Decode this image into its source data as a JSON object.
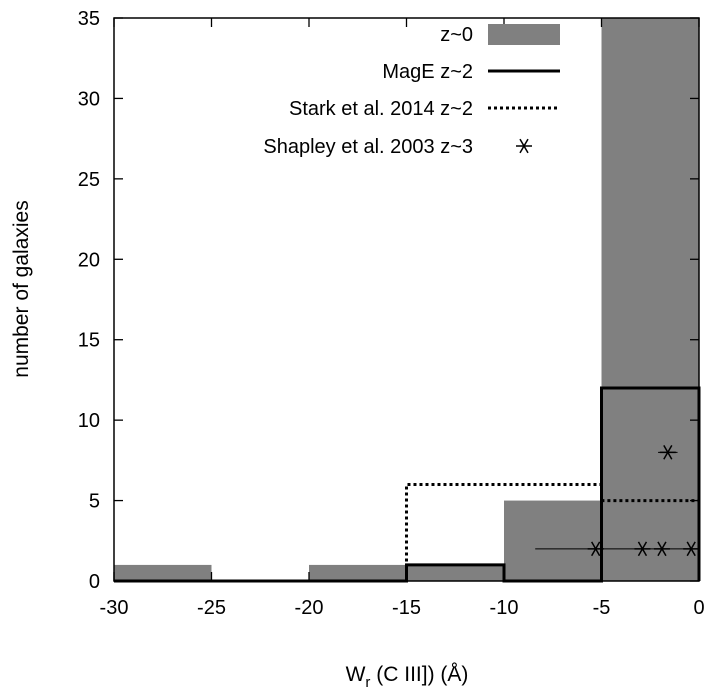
{
  "chart_data": {
    "type": "bar",
    "xlabel": "W",
    "xlabel_sub": "r",
    "xlabel_rest": " (C III]) (Å)",
    "ylabel": "number of galaxies",
    "xlim": [
      -30,
      0
    ],
    "ylim": [
      0,
      35
    ],
    "xticks": [
      "-30",
      "-25",
      "-20",
      "-15",
      "-10",
      "-5",
      "0"
    ],
    "yticks": [
      "0",
      "5",
      "10",
      "15",
      "20",
      "25",
      "30",
      "35"
    ],
    "grid": false,
    "legend_position": "top-right",
    "bin_edges": [
      -30,
      -25,
      -20,
      -15,
      -10,
      -5,
      0
    ],
    "series": [
      {
        "name": "z~0",
        "style": "filled-bars",
        "color": "#808080",
        "values": [
          1,
          0,
          1,
          1,
          5,
          35
        ]
      },
      {
        "name": "MagE z~2",
        "style": "solid-step",
        "color": "#000000",
        "values": [
          0,
          0,
          0,
          1,
          0,
          12
        ]
      },
      {
        "name": "Stark et al. 2014 z~2",
        "style": "dotted-step",
        "color": "#000000",
        "values": [
          0,
          0,
          0,
          6,
          6,
          5
        ]
      },
      {
        "name": "Shapley et al. 2003 z~3",
        "style": "star-points",
        "color": "#000000",
        "points": [
          {
            "x": -5.3,
            "y": 2
          },
          {
            "x": -2.9,
            "y": 2
          },
          {
            "x": -1.9,
            "y": 2
          },
          {
            "x": -0.4,
            "y": 2
          },
          {
            "x": -1.6,
            "y": 8
          }
        ],
        "errorbars": [
          {
            "y": 2,
            "x_from": -8.4,
            "x_to": -0.1
          },
          {
            "y": 8,
            "x_from": -2.1,
            "x_to": -1.1
          }
        ]
      }
    ]
  }
}
